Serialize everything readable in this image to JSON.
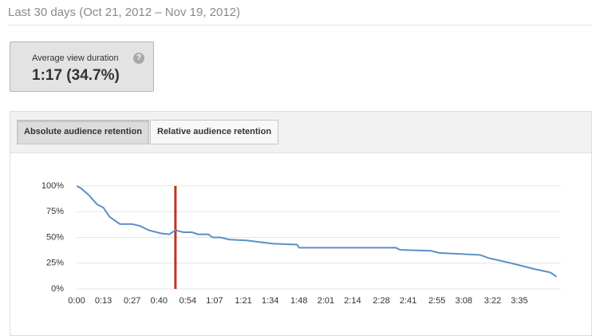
{
  "header": {
    "period": "Last 30 days (Oct 21, 2012 – Nov 19, 2012)"
  },
  "metric": {
    "label": "Average view duration",
    "value": "1:17 (34.7%)"
  },
  "tabs": [
    "Absolute audience retention",
    "Relative audience retention"
  ],
  "chart_data": {
    "type": "line",
    "color": "#5b8fc9",
    "x": [
      0,
      2,
      6,
      10,
      13,
      16,
      21,
      27,
      31,
      35,
      41,
      45,
      48,
      52,
      56,
      59,
      64,
      66,
      70,
      74,
      83,
      95,
      107,
      108,
      118,
      155,
      157,
      172,
      176,
      196,
      200,
      211,
      223,
      230,
      233
    ],
    "values": [
      100,
      98,
      91,
      82,
      79,
      70,
      63,
      63,
      61,
      57,
      54,
      53,
      57,
      55,
      55,
      53,
      53,
      50,
      50,
      48,
      47,
      44,
      43,
      40,
      40,
      40,
      38,
      37,
      35,
      33,
      30,
      25,
      19,
      16,
      12
    ],
    "xlim": [
      0,
      234
    ],
    "ylim": [
      0,
      100
    ],
    "xticks": [
      {
        "value": 0,
        "label": "0:00"
      },
      {
        "value": 13,
        "label": "0:13"
      },
      {
        "value": 27,
        "label": "0:27"
      },
      {
        "value": 40,
        "label": "0:40"
      },
      {
        "value": 54,
        "label": "0:54"
      },
      {
        "value": 67,
        "label": "1:07"
      },
      {
        "value": 81,
        "label": "1:21"
      },
      {
        "value": 94,
        "label": "1:34"
      },
      {
        "value": 108,
        "label": "1:48"
      },
      {
        "value": 121,
        "label": "2:01"
      },
      {
        "value": 134,
        "label": "2:14"
      },
      {
        "value": 148,
        "label": "2:28"
      },
      {
        "value": 161,
        "label": "2:41"
      },
      {
        "value": 175,
        "label": "2:55"
      },
      {
        "value": 188,
        "label": "3:08"
      },
      {
        "value": 202,
        "label": "3:22"
      },
      {
        "value": 215,
        "label": "3:35"
      }
    ],
    "yticks": [
      {
        "value": 0,
        "label": "0%"
      },
      {
        "value": 25,
        "label": "25%"
      },
      {
        "value": 50,
        "label": "50%"
      },
      {
        "value": 75,
        "label": "75%"
      },
      {
        "value": 100,
        "label": "100%"
      }
    ],
    "grid": true,
    "marker": {
      "x": 48,
      "color": "#c0321f"
    }
  }
}
